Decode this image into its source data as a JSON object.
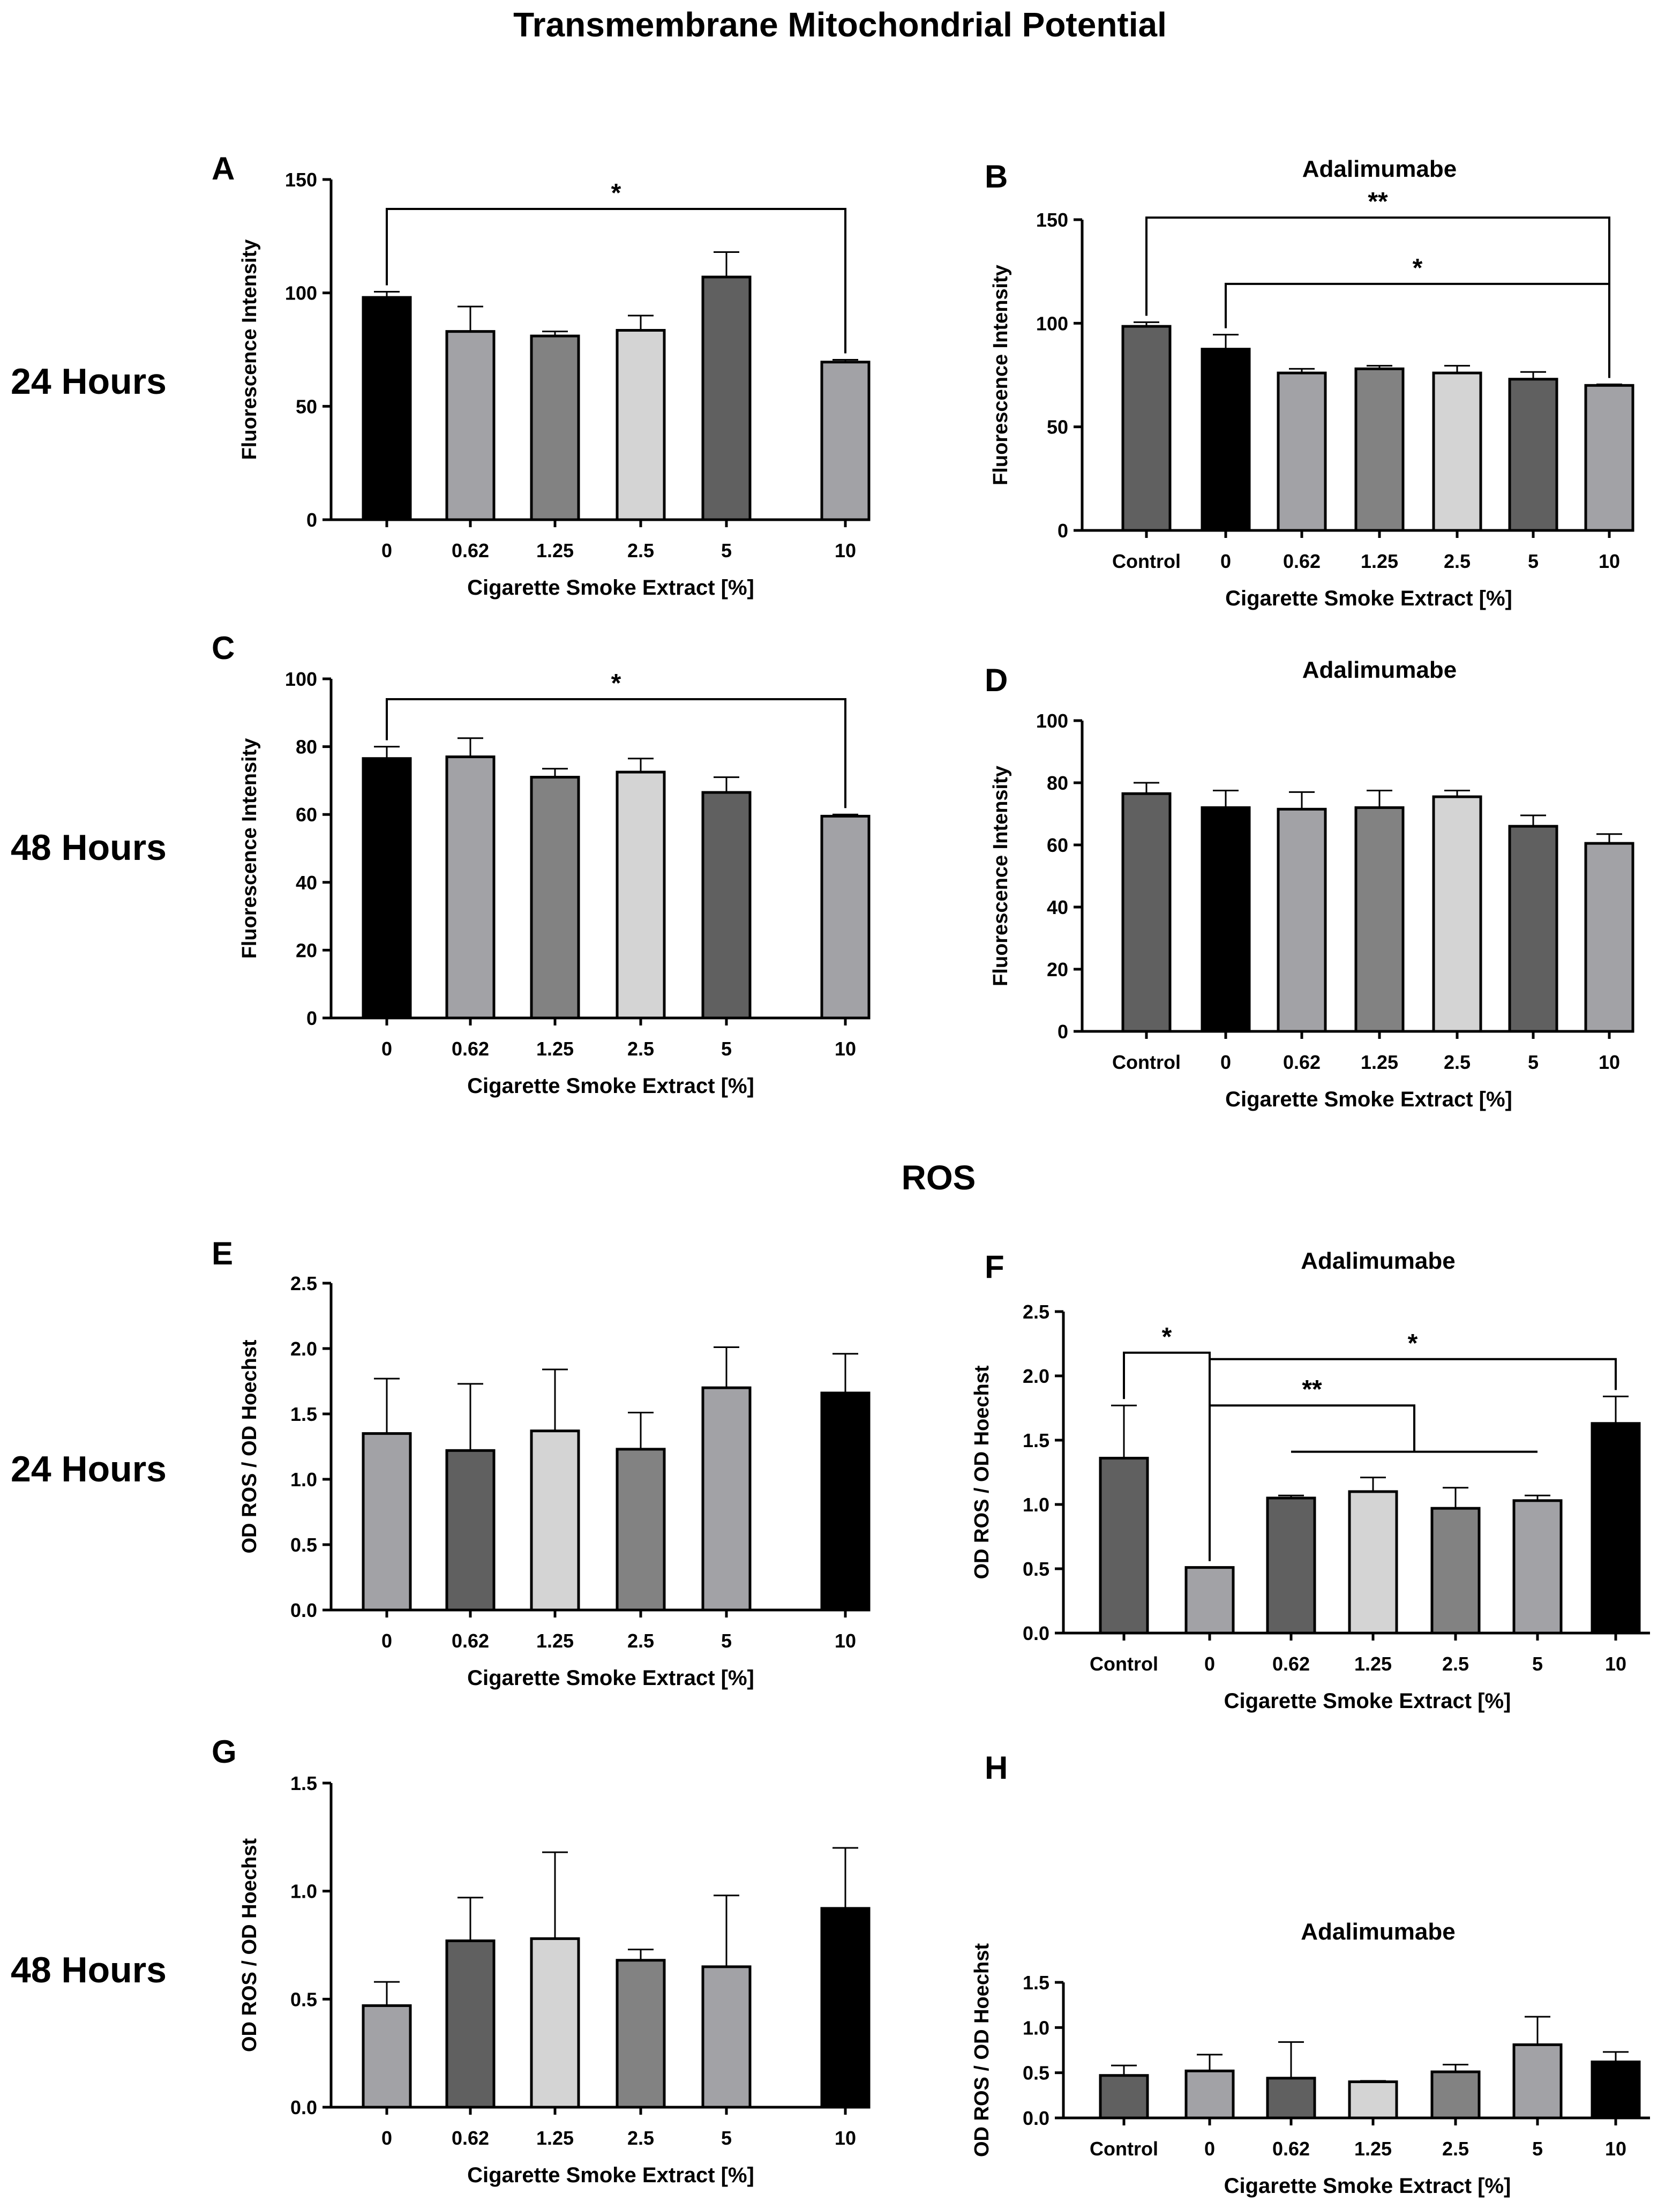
{
  "figure": {
    "section_titles": [
      "Transmembrane Mitochondrial Potential",
      "ROS"
    ],
    "row_labels": [
      "24 Hours",
      "48 Hours",
      "24 Hours",
      "48 Hours"
    ]
  },
  "chart_data": [
    {
      "panel": "A",
      "type": "bar",
      "title": "",
      "xlabel": "Cigarette Smoke Extract [%]",
      "ylabel": "Fluorescence Intensity",
      "categories": [
        "0",
        "0.62",
        "1.25",
        "2.5",
        "5",
        "10"
      ],
      "values": [
        98,
        83,
        81,
        83.5,
        107,
        69.5
      ],
      "errors": [
        2.5,
        11,
        2,
        6.5,
        11,
        1
      ],
      "ylim": [
        0,
        150
      ],
      "yticks": [
        0,
        50,
        100,
        150
      ],
      "ytick_labels": [
        "0",
        "50",
        "100",
        "150"
      ],
      "colors": [
        "#000000",
        "#a2a2a6",
        "#828282",
        "#d4d4d4",
        "#606060",
        "#a2a2a6"
      ],
      "significance": [
        {
          "from": 0,
          "to": 5,
          "label": "*",
          "y": 137,
          "tips": "both"
        }
      ]
    },
    {
      "panel": "B",
      "type": "bar",
      "title": "Adalimumabe",
      "xlabel": "Cigarette Smoke Extract [%]",
      "ylabel": "Fluorescence Intensity",
      "categories": [
        "Control",
        "0",
        "0.62",
        "1.25",
        "2.5",
        "5",
        "10"
      ],
      "values": [
        98.5,
        87.5,
        76,
        78,
        76,
        73,
        70
      ],
      "errors": [
        2,
        7,
        2,
        1.5,
        3.5,
        3.5,
        0.5
      ],
      "ylim": [
        0,
        150
      ],
      "yticks": [
        0,
        50,
        100,
        150
      ],
      "ytick_labels": [
        "0",
        "50",
        "100",
        "150"
      ],
      "colors": [
        "#606060",
        "#000000",
        "#a2a2a6",
        "#828282",
        "#d4d4d4",
        "#606060",
        "#a2a2a6"
      ],
      "significance": [
        {
          "from": 0,
          "to": 6,
          "label": "**",
          "y": 151,
          "tips": "both"
        },
        {
          "from": 1,
          "to": 6,
          "label": "*",
          "y": 119,
          "tips": "both"
        }
      ]
    },
    {
      "panel": "C",
      "type": "bar",
      "title": "",
      "xlabel": "Cigarette Smoke Extract [%]",
      "ylabel": "Fluorescence Intensity",
      "categories": [
        "0",
        "0.62",
        "1.25",
        "2.5",
        "5",
        "10"
      ],
      "values": [
        76.5,
        77,
        71,
        72.5,
        66.5,
        59.5
      ],
      "errors": [
        3.5,
        5.5,
        2.5,
        4,
        4.5,
        0.5
      ],
      "ylim": [
        0,
        100
      ],
      "yticks": [
        0,
        20,
        40,
        60,
        80,
        100
      ],
      "ytick_labels": [
        "0",
        "20",
        "40",
        "60",
        "80",
        "100"
      ],
      "colors": [
        "#000000",
        "#a2a2a6",
        "#828282",
        "#d4d4d4",
        "#606060",
        "#a2a2a6"
      ],
      "significance": [
        {
          "from": 0,
          "to": 5,
          "label": "*",
          "y": 94,
          "tips": "both"
        }
      ]
    },
    {
      "panel": "D",
      "type": "bar",
      "title": "Adalimumabe",
      "xlabel": "Cigarette Smoke Extract [%]",
      "ylabel": "Fluorescence Intensity",
      "categories": [
        "Control",
        "0",
        "0.62",
        "1.25",
        "2.5",
        "5",
        "10"
      ],
      "values": [
        76.5,
        72,
        71.5,
        72,
        75.5,
        66,
        60.5
      ],
      "errors": [
        3.5,
        5.5,
        5.5,
        5.5,
        2,
        3.5,
        3
      ],
      "ylim": [
        0,
        100
      ],
      "yticks": [
        0,
        20,
        40,
        60,
        80,
        100
      ],
      "ytick_labels": [
        "0",
        "20",
        "40",
        "60",
        "80",
        "100"
      ],
      "colors": [
        "#606060",
        "#000000",
        "#a2a2a6",
        "#828282",
        "#d4d4d4",
        "#606060",
        "#a2a2a6"
      ],
      "significance": []
    },
    {
      "panel": "E",
      "type": "bar",
      "title": "",
      "xlabel": "Cigarette Smoke Extract [%]",
      "ylabel": "OD ROS / OD Hoechst",
      "categories": [
        "0",
        "0.62",
        "1.25",
        "2.5",
        "5",
        "10"
      ],
      "values": [
        1.35,
        1.22,
        1.37,
        1.23,
        1.7,
        1.66
      ],
      "errors": [
        0.42,
        0.51,
        0.47,
        0.28,
        0.31,
        0.3
      ],
      "ylim": [
        0,
        2.5
      ],
      "yticks": [
        0,
        0.5,
        1,
        1.5,
        2,
        2.5
      ],
      "ytick_labels": [
        "0.0",
        "0.5",
        "1.0",
        "1.5",
        "2.0",
        "2.5"
      ],
      "colors": [
        "#a2a2a6",
        "#606060",
        "#d4d4d4",
        "#828282",
        "#a2a2a6",
        "#000000"
      ],
      "significance": []
    },
    {
      "panel": "F",
      "type": "bar",
      "title": "Adalimumabe",
      "xlabel": "Cigarette Smoke Extract [%]",
      "ylabel": "OD ROS / OD Hoechst",
      "categories": [
        "Control",
        "0",
        "0.62",
        "1.25",
        "2.5",
        "5",
        "10"
      ],
      "values": [
        1.36,
        0.51,
        1.05,
        1.1,
        0.97,
        1.03,
        1.63
      ],
      "errors": [
        0.41,
        0,
        0.02,
        0.11,
        0.16,
        0.04,
        0.21
      ],
      "ylim": [
        0,
        2.5
      ],
      "yticks": [
        0,
        0.5,
        1,
        1.5,
        2,
        2.5
      ],
      "ytick_labels": [
        "0.0",
        "0.5",
        "1.0",
        "1.5",
        "2.0",
        "2.5"
      ],
      "colors": [
        "#606060",
        "#a2a2a6",
        "#606060",
        "#d4d4d4",
        "#828282",
        "#a2a2a6",
        "#000000"
      ],
      "significance": [
        {
          "from": 0,
          "to": 1,
          "label": "*",
          "y": 2.18,
          "tips": "both"
        },
        {
          "from": 1,
          "to": 6,
          "label": "*",
          "y": 2.13,
          "tips": "both"
        },
        {
          "from": 1,
          "to": 3.5,
          "label": "**",
          "y": 1.77,
          "tips": "left-bracket",
          "span_to": [
            2,
            5
          ],
          "span_y": 1.41
        }
      ]
    },
    {
      "panel": "G",
      "type": "bar",
      "title": "",
      "xlabel": "Cigarette Smoke Extract [%]",
      "ylabel": "OD ROS / OD Hoechst",
      "categories": [
        "0",
        "0.62",
        "1.25",
        "2.5",
        "5",
        "10"
      ],
      "values": [
        0.47,
        0.77,
        0.78,
        0.68,
        0.65,
        0.92
      ],
      "errors": [
        0.11,
        0.2,
        0.4,
        0.05,
        0.33,
        0.28
      ],
      "ylim": [
        0,
        1.5
      ],
      "yticks": [
        0,
        0.5,
        1,
        1.5
      ],
      "ytick_labels": [
        "0.0",
        "0.5",
        "1.0",
        "1.5"
      ],
      "colors": [
        "#a2a2a6",
        "#606060",
        "#d4d4d4",
        "#828282",
        "#a2a2a6",
        "#000000"
      ],
      "significance": []
    },
    {
      "panel": "H",
      "type": "bar",
      "title": "Adalimumabe",
      "xlabel": "Cigarette Smoke Extract [%]",
      "ylabel": "OD ROS / OD Hoechst",
      "categories": [
        "Control",
        "0",
        "0.62",
        "1.25",
        "2.5",
        "5",
        "10"
      ],
      "values": [
        0.47,
        0.52,
        0.44,
        0.4,
        0.51,
        0.81,
        0.62
      ],
      "errors": [
        0.11,
        0.18,
        0.4,
        0.01,
        0.08,
        0.31,
        0.11
      ],
      "ylim": [
        0,
        1.5
      ],
      "yticks": [
        0,
        0.5,
        1,
        1.5
      ],
      "ytick_labels": [
        "0.0",
        "0.5",
        "1.0",
        "1.5"
      ],
      "colors": [
        "#606060",
        "#a2a2a6",
        "#606060",
        "#d4d4d4",
        "#828282",
        "#a2a2a6",
        "#000000"
      ],
      "significance": []
    }
  ]
}
